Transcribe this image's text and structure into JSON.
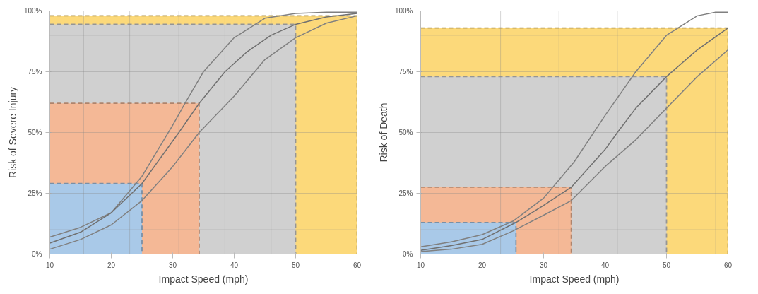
{
  "chart_data": [
    {
      "type": "area",
      "xlabel": "Impact Speed (mph)",
      "ylabel": "Risk of Severe Injury",
      "xlim": [
        10,
        60
      ],
      "ylim": [
        0,
        100
      ],
      "xticks": [
        10,
        20,
        30,
        40,
        50,
        60
      ],
      "yticks": [
        {
          "value": 0,
          "label": "0%"
        },
        {
          "value": 25,
          "label": "25%"
        },
        {
          "value": 50,
          "label": "50%"
        },
        {
          "value": 75,
          "label": "75%"
        },
        {
          "value": 100,
          "label": "100%"
        }
      ],
      "series": [
        {
          "color": "#fcd97a",
          "line_style": "dashed",
          "x": [
            10,
            60
          ],
          "values": [
            98,
            98
          ]
        },
        {
          "color": "#d0d0d0",
          "line_style": "dashed",
          "x": [
            10,
            50
          ],
          "values": [
            94.5,
            94.5
          ]
        },
        {
          "color": "#f4b896",
          "line_style": "dashed",
          "x": [
            10,
            34.3
          ],
          "values": [
            62,
            62
          ]
        },
        {
          "color": "#a9c9e8",
          "line_style": "dashed",
          "x": [
            10,
            25
          ],
          "values": [
            29,
            29
          ]
        },
        {
          "type": "line",
          "color": "#808080",
          "x": [
            10,
            15,
            20,
            25,
            30,
            32,
            35,
            40,
            45,
            50,
            55,
            60
          ],
          "values": [
            7,
            11,
            17,
            32,
            53,
            62,
            75,
            89,
            97,
            99,
            99.5,
            99.5
          ]
        },
        {
          "type": "line",
          "color": "#707070",
          "x": [
            10,
            15,
            20,
            25,
            31,
            34.3,
            38.5,
            42,
            46,
            50,
            55,
            60
          ],
          "values": [
            4.5,
            9,
            17,
            29,
            50,
            62,
            75,
            83,
            90,
            94.5,
            97.5,
            99
          ]
        },
        {
          "type": "line",
          "color": "#808080",
          "x": [
            10,
            15,
            20,
            25,
            30,
            34.3,
            40,
            45,
            50,
            55,
            60
          ],
          "values": [
            2,
            6,
            12,
            22,
            36,
            50,
            65,
            80,
            89,
            95,
            98
          ]
        }
      ],
      "ref_lines": [
        {
          "axis": "y",
          "value": 10
        },
        {
          "axis": "y",
          "value": 25
        },
        {
          "axis": "y",
          "value": 50
        },
        {
          "axis": "y",
          "value": 75
        },
        {
          "axis": "y",
          "value": 90
        },
        {
          "axis": "x",
          "value": 15.5
        },
        {
          "axis": "x",
          "value": 23
        },
        {
          "axis": "x",
          "value": 31
        },
        {
          "axis": "x",
          "value": 38.5
        },
        {
          "axis": "x",
          "value": 46
        }
      ]
    },
    {
      "type": "area",
      "xlabel": "Impact Speed (mph)",
      "ylabel": "Risk of Death",
      "xlim": [
        10,
        60
      ],
      "ylim": [
        0,
        100
      ],
      "xticks": [
        10,
        20,
        30,
        40,
        50,
        60
      ],
      "yticks": [
        {
          "value": 0,
          "label": "0%"
        },
        {
          "value": 25,
          "label": "25%"
        },
        {
          "value": 50,
          "label": "50%"
        },
        {
          "value": 75,
          "label": "75%"
        },
        {
          "value": 100,
          "label": "100%"
        }
      ],
      "series": [
        {
          "color": "#fcd97a",
          "line_style": "dashed",
          "x": [
            10,
            60
          ],
          "values": [
            93,
            93
          ]
        },
        {
          "color": "#d0d0d0",
          "line_style": "dashed",
          "x": [
            10,
            50
          ],
          "values": [
            73,
            73
          ]
        },
        {
          "color": "#f4b896",
          "line_style": "dashed",
          "x": [
            10,
            34.5
          ],
          "values": [
            27.5,
            27.5
          ]
        },
        {
          "color": "#a9c9e8",
          "line_style": "dashed",
          "x": [
            10,
            25.5
          ],
          "values": [
            13,
            13
          ]
        },
        {
          "type": "line",
          "color": "#808080",
          "x": [
            10,
            15,
            20,
            25,
            30,
            35,
            40,
            45,
            50,
            55,
            58,
            60
          ],
          "values": [
            3,
            5,
            8,
            13.5,
            23,
            38,
            57,
            75,
            90,
            98,
            99.5,
            99.5
          ]
        },
        {
          "type": "line",
          "color": "#707070",
          "x": [
            10,
            15,
            20,
            25.5,
            30,
            34.5,
            40,
            42,
            45,
            50,
            55,
            60
          ],
          "values": [
            1.5,
            3.5,
            6,
            13,
            20,
            27.5,
            43,
            50,
            60,
            73,
            84,
            93
          ]
        },
        {
          "type": "line",
          "color": "#808080",
          "x": [
            10,
            15,
            20,
            25,
            30,
            34.5,
            40,
            45,
            50,
            55,
            60
          ],
          "values": [
            1,
            2,
            4,
            9.5,
            16,
            22,
            36,
            47,
            60,
            73,
            84
          ]
        }
      ],
      "ref_lines": [
        {
          "axis": "y",
          "value": 10
        },
        {
          "axis": "y",
          "value": 25
        },
        {
          "axis": "y",
          "value": 50
        },
        {
          "axis": "y",
          "value": 75
        },
        {
          "axis": "y",
          "value": 90
        },
        {
          "axis": "x",
          "value": 23
        },
        {
          "axis": "x",
          "value": 32.5
        },
        {
          "axis": "x",
          "value": 42
        },
        {
          "axis": "x",
          "value": 58
        }
      ]
    }
  ]
}
